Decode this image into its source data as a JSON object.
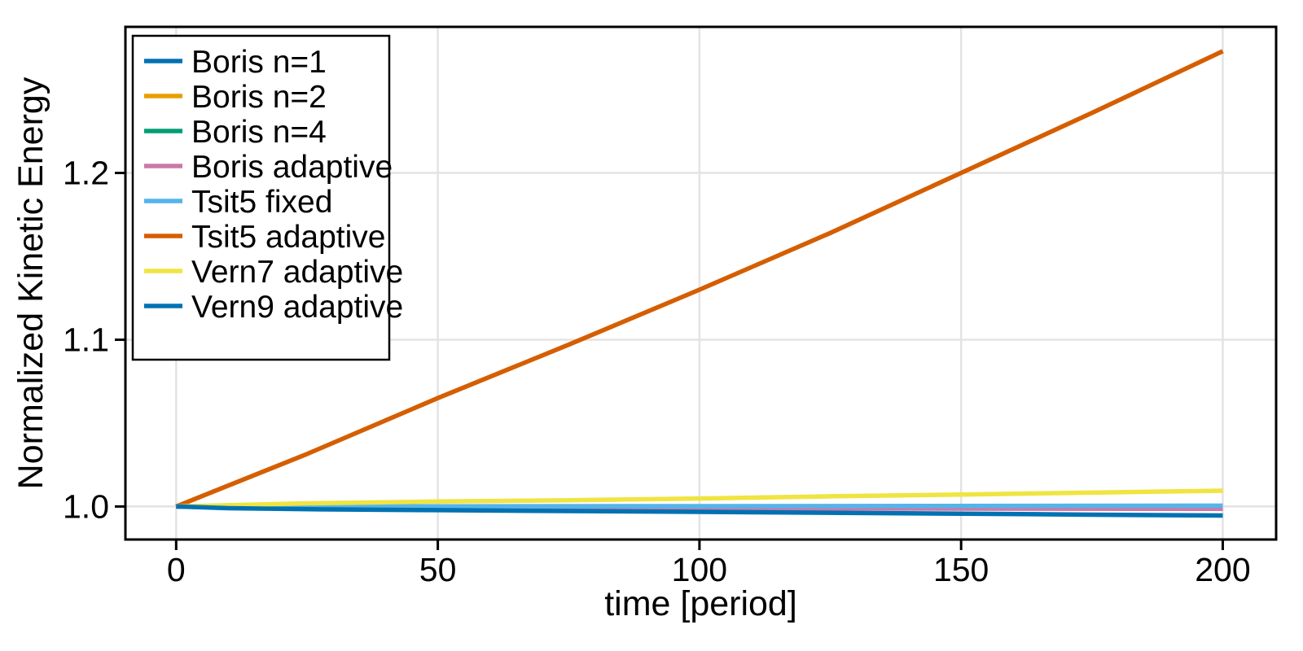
{
  "chart_data": {
    "type": "line",
    "title": "",
    "xlabel": "time [period]",
    "ylabel": "Normalized Kinetic Energy",
    "xlim": [
      -9.7,
      210.2
    ],
    "ylim": [
      0.9802,
      1.2876
    ],
    "xticks": [
      0,
      50,
      100,
      150,
      200
    ],
    "xtick_labels": [
      "0",
      "50",
      "100",
      "150",
      "200"
    ],
    "yticks": [
      1.0,
      1.1,
      1.2
    ],
    "ytick_labels": [
      "1.0",
      "1.1",
      "1.2"
    ],
    "grid": true,
    "grid_color": "#e3e3e3",
    "frame_color": "#000000",
    "legend_position": "top-left",
    "legend_border_color": "#000000",
    "legend_background": "#ffffff",
    "series": [
      {
        "name": "Boris n=1",
        "color": "#0072B2",
        "points": [
          [
            0,
            1.0
          ],
          [
            200,
            1.0
          ]
        ]
      },
      {
        "name": "Boris n=2",
        "color": "#E69F00",
        "points": [
          [
            0,
            1.0
          ],
          [
            200,
            1.0
          ]
        ]
      },
      {
        "name": "Boris n=4",
        "color": "#009E73",
        "points": [
          [
            0,
            1.0
          ],
          [
            200,
            1.0
          ]
        ]
      },
      {
        "name": "Boris adaptive",
        "color": "#CC79A7",
        "points": [
          [
            0,
            1.0
          ],
          [
            30,
            0.9994
          ],
          [
            70,
            0.999
          ],
          [
            120,
            0.9988
          ],
          [
            200,
            0.9986
          ]
        ]
      },
      {
        "name": "Tsit5 fixed",
        "color": "#56B4E9",
        "points": [
          [
            0,
            1.0
          ],
          [
            100,
            1.0002
          ],
          [
            200,
            1.0005
          ]
        ]
      },
      {
        "name": "Tsit5 adaptive",
        "color": "#D55E00",
        "points": [
          [
            0,
            1.0
          ],
          [
            25,
            1.0315
          ],
          [
            50,
            1.065
          ],
          [
            75,
            1.097
          ],
          [
            100,
            1.13
          ],
          [
            125,
            1.164
          ],
          [
            150,
            1.2
          ],
          [
            175,
            1.236
          ],
          [
            200,
            1.273
          ]
        ]
      },
      {
        "name": "Vern7 adaptive",
        "color": "#F0E442",
        "points": [
          [
            0,
            1.0
          ],
          [
            25,
            1.0019
          ],
          [
            50,
            1.003
          ],
          [
            75,
            1.0037
          ],
          [
            100,
            1.0048
          ],
          [
            125,
            1.0061
          ],
          [
            150,
            1.0072
          ],
          [
            175,
            1.0083
          ],
          [
            200,
            1.0095
          ]
        ]
      },
      {
        "name": "Vern9 adaptive",
        "color": "#0072B2",
        "points": [
          [
            0,
            1.0
          ],
          [
            10,
            0.999
          ],
          [
            27,
            0.9983
          ],
          [
            50,
            0.9978
          ],
          [
            75,
            0.9973
          ],
          [
            100,
            0.9968
          ],
          [
            122,
            0.9963
          ],
          [
            150,
            0.9957
          ],
          [
            175,
            0.9951
          ],
          [
            200,
            0.9946
          ]
        ]
      }
    ]
  }
}
